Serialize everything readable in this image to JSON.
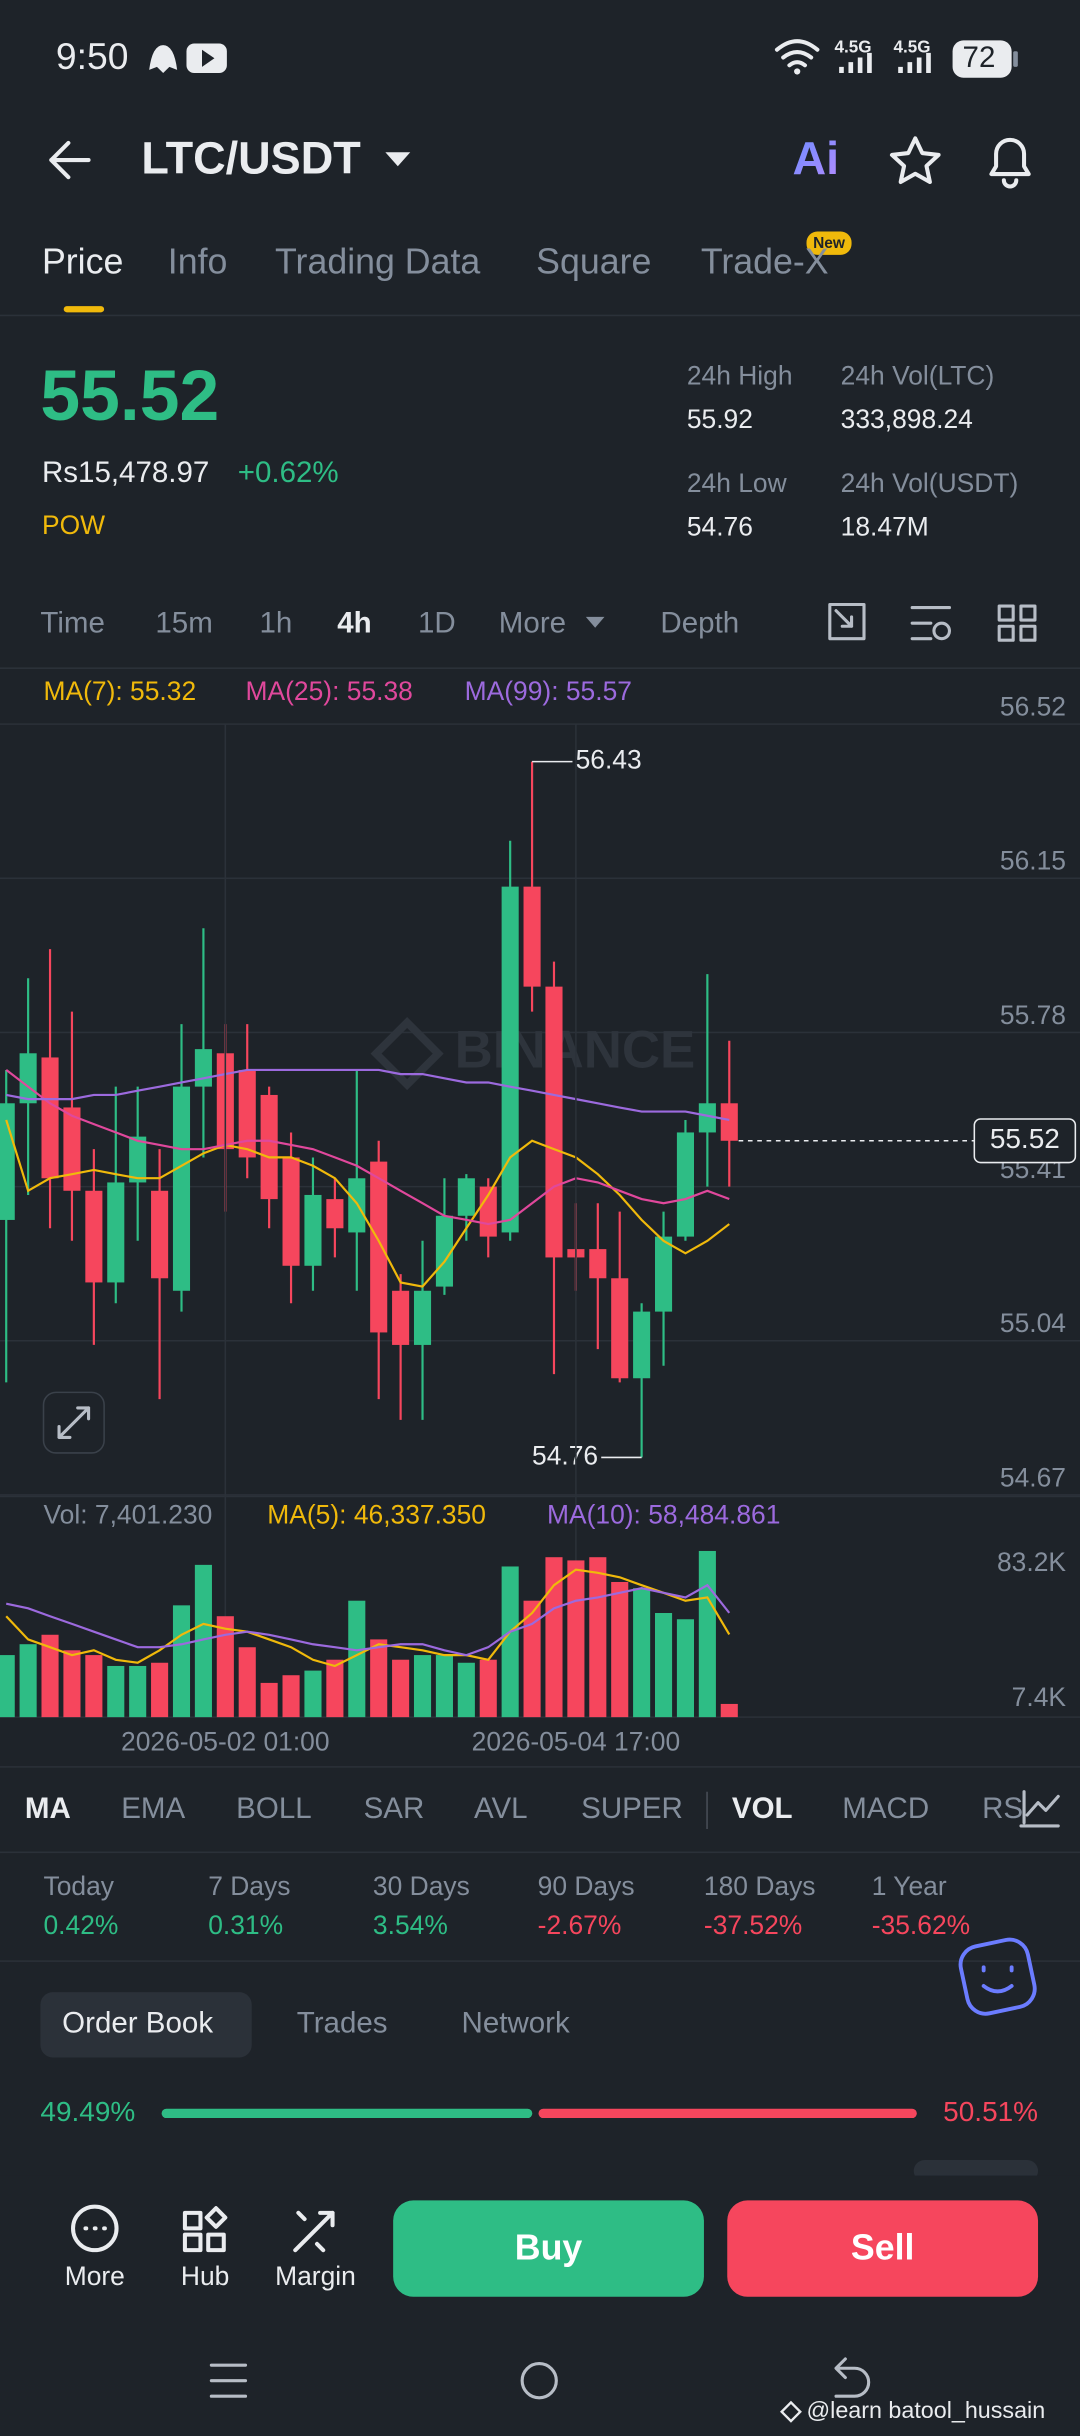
{
  "status_bar": {
    "time": "9:50",
    "network_1": "4.5G",
    "network_2": "4.5G",
    "battery": "72"
  },
  "header": {
    "pair": "LTC/USDT",
    "ai": "Ai"
  },
  "tabs": [
    "Price",
    "Info",
    "Trading Data",
    "Square",
    "Trade-X"
  ],
  "tab_badge": "New",
  "ticker": {
    "price": "55.52",
    "local_price": "Rs15,478.97",
    "change": "+0.62%",
    "tag": "POW",
    "stats": [
      {
        "label": "24h High",
        "value": "55.92"
      },
      {
        "label": "24h Vol(LTC)",
        "value": "333,898.24"
      },
      {
        "label": "24h Low",
        "value": "54.76"
      },
      {
        "label": "24h Vol(USDT)",
        "value": "18.47M"
      }
    ]
  },
  "intervals": [
    "Time",
    "15m",
    "1h",
    "4h",
    "1D",
    "More",
    "Depth"
  ],
  "chart_data": [
    {
      "type": "candlestick",
      "watermark": "BINANCE",
      "open": [
        55.33,
        55.61,
        55.72,
        55.6,
        55.4,
        55.18,
        55.42,
        55.4,
        55.16,
        55.65,
        55.73,
        55.69,
        55.63,
        55.48,
        55.22,
        55.38,
        55.3,
        55.47,
        55.16,
        55.03,
        55.17,
        55.34,
        55.41,
        55.3,
        56.13,
        55.89,
        55.26,
        55.26,
        55.19,
        54.95,
        55.11,
        55.29,
        55.54,
        55.61
      ],
      "high": [
        55.69,
        55.91,
        55.98,
        55.83,
        55.5,
        55.65,
        55.65,
        55.5,
        55.8,
        56.03,
        55.8,
        55.8,
        55.65,
        55.54,
        55.48,
        55.43,
        55.69,
        55.52,
        55.2,
        55.28,
        55.43,
        55.44,
        55.43,
        56.24,
        56.43,
        55.95,
        55.37,
        55.37,
        55.35,
        55.13,
        55.35,
        55.57,
        55.92,
        55.76
      ],
      "low": [
        54.94,
        55.39,
        55.31,
        55.28,
        55.03,
        55.13,
        55.28,
        54.9,
        55.11,
        55.48,
        55.35,
        55.43,
        55.31,
        55.13,
        55.16,
        55.24,
        55.16,
        54.9,
        54.85,
        54.85,
        55.15,
        55.28,
        55.24,
        55.28,
        55.83,
        54.96,
        55.16,
        55.02,
        54.94,
        54.76,
        54.98,
        55.28,
        55.41,
        55.41
      ],
      "close": [
        55.61,
        55.73,
        55.43,
        55.4,
        55.18,
        55.42,
        55.53,
        55.19,
        55.65,
        55.74,
        55.5,
        55.48,
        55.38,
        55.22,
        55.39,
        55.31,
        55.43,
        55.06,
        55.03,
        55.16,
        55.34,
        55.43,
        55.29,
        56.13,
        55.89,
        55.24,
        55.24,
        55.19,
        54.95,
        55.11,
        55.29,
        55.54,
        55.61,
        55.52
      ],
      "up_color": "#2ebd85",
      "down_color": "#f6465d",
      "series": [
        {
          "name": "MA(7): 55.32",
          "color": "#f0b90b",
          "values": [
            55.57,
            55.4,
            55.43,
            55.44,
            55.45,
            55.44,
            55.43,
            55.43,
            55.46,
            55.49,
            55.51,
            55.5,
            55.48,
            55.48,
            55.46,
            55.43,
            55.37,
            55.28,
            55.18,
            55.17,
            55.23,
            55.31,
            55.39,
            55.48,
            55.52,
            55.5,
            55.48,
            55.44,
            55.39,
            55.33,
            55.28,
            55.25,
            55.28,
            55.32
          ]
        },
        {
          "name": "MA(25): 55.38",
          "color": "#e0489c",
          "values": [
            55.69,
            55.65,
            55.61,
            55.58,
            55.56,
            55.54,
            55.52,
            55.51,
            55.5,
            55.5,
            55.51,
            55.52,
            55.52,
            55.51,
            55.5,
            55.48,
            55.46,
            55.43,
            55.4,
            55.37,
            55.34,
            55.33,
            55.32,
            55.33,
            55.37,
            55.41,
            55.43,
            55.42,
            55.4,
            55.38,
            55.37,
            55.38,
            55.4,
            55.38
          ]
        },
        {
          "name": "MA(99): 55.57",
          "color": "#9c6ade",
          "values": [
            55.63,
            55.62,
            55.62,
            55.62,
            55.63,
            55.63,
            55.64,
            55.65,
            55.66,
            55.67,
            55.68,
            55.69,
            55.69,
            55.69,
            55.69,
            55.69,
            55.69,
            55.69,
            55.68,
            55.68,
            55.67,
            55.66,
            55.66,
            55.65,
            55.64,
            55.63,
            55.62,
            55.61,
            55.6,
            55.59,
            55.59,
            55.59,
            55.58,
            55.57
          ]
        }
      ],
      "ylim": [
        54.67,
        56.52
      ],
      "yticks": [
        56.52,
        56.15,
        55.78,
        55.41,
        55.04,
        54.67
      ],
      "grid": true,
      "annotations": [
        {
          "index": 24,
          "value": 56.43
        },
        {
          "index": 29,
          "value": 54.76
        }
      ],
      "last_price": 55.52
    },
    {
      "type": "bar",
      "categories": [
        null,
        null,
        null,
        null,
        null,
        null,
        null,
        null,
        null,
        null,
        "2026-05-02 01:00",
        null,
        null,
        null,
        null,
        null,
        null,
        null,
        null,
        null,
        null,
        null,
        null,
        null,
        null,
        null,
        "2026-05-04 17:00",
        null,
        null,
        null,
        null,
        null,
        null,
        null
      ],
      "series": [
        {
          "name": "Vol: 7,401.230",
          "values": [
            34800,
            40900,
            46200,
            37500,
            34800,
            28700,
            28700,
            30500,
            62700,
            85400,
            56600,
            39200,
            19200,
            23500,
            26100,
            32200,
            65300,
            43600,
            32200,
            34800,
            34800,
            30500,
            32200,
            84500,
            65300,
            89700,
            87900,
            89700,
            75800,
            72300,
            58400,
            54900,
            93200,
            7401.23
          ],
          "colors": [
            "#2ebd85",
            "#2ebd85",
            "#f6465d",
            "#f6465d",
            "#f6465d",
            "#2ebd85",
            "#2ebd85",
            "#f6465d",
            "#2ebd85",
            "#2ebd85",
            "#f6465d",
            "#f6465d",
            "#f6465d",
            "#f6465d",
            "#2ebd85",
            "#f6465d",
            "#2ebd85",
            "#f6465d",
            "#f6465d",
            "#2ebd85",
            "#2ebd85",
            "#2ebd85",
            "#f6465d",
            "#2ebd85",
            "#f6465d",
            "#f6465d",
            "#f6465d",
            "#f6465d",
            "#f6465d",
            "#2ebd85",
            "#2ebd85",
            "#2ebd85",
            "#2ebd85",
            "#f6465d"
          ]
        },
        {
          "name": "MA(5): 46,337.350",
          "type": "line",
          "color": "#f0b90b",
          "values": [
            56600,
            43600,
            39200,
            34800,
            37500,
            32200,
            30500,
            37500,
            46200,
            52300,
            49600,
            47900,
            43600,
            39200,
            32200,
            28700,
            34800,
            40900,
            39200,
            37500,
            34800,
            34800,
            32200,
            47900,
            58400,
            74000,
            82700,
            81000,
            78400,
            74000,
            69700,
            65300,
            67100,
            46337.35
          ]
        },
        {
          "name": "MA(10): 58,484.861",
          "type": "line",
          "color": "#9c6ade",
          "values": [
            63600,
            61000,
            56600,
            52300,
            47900,
            43600,
            39200,
            39200,
            40900,
            43600,
            46200,
            47900,
            46200,
            43600,
            40900,
            39200,
            37500,
            39200,
            40900,
            40900,
            37500,
            34800,
            39200,
            47900,
            52300,
            61000,
            65300,
            67100,
            69700,
            72300,
            69700,
            67100,
            74000,
            58484.861
          ]
        }
      ],
      "ylim": [
        0,
        95000
      ],
      "yticks": [
        {
          "value": 83200,
          "label": "83.2K"
        },
        {
          "value": 7400,
          "label": "7.4K"
        }
      ]
    }
  ],
  "indicators": [
    "MA",
    "EMA",
    "BOLL",
    "SAR",
    "AVL",
    "SUPER",
    "VOL",
    "MACD",
    "RS"
  ],
  "performance": [
    {
      "label": "Today",
      "value": "0.42%"
    },
    {
      "label": "7 Days",
      "value": "0.31%"
    },
    {
      "label": "30 Days",
      "value": "3.54%"
    },
    {
      "label": "90 Days",
      "value": "-2.67%"
    },
    {
      "label": "180 Days",
      "value": "-37.52%"
    },
    {
      "label": "1 Year",
      "value": "-35.62%"
    }
  ],
  "order_book": {
    "tabs": [
      "Order Book",
      "Trades",
      "Network"
    ],
    "ratio": {
      "values": [
        49.49,
        50.51
      ],
      "value_labels": [
        "49.49%",
        "50.51%"
      ],
      "colors": [
        "#2ebd85",
        "#f6465d"
      ]
    }
  },
  "actions": {
    "tools": [
      "More",
      "Hub",
      "Margin"
    ],
    "buy": "Buy",
    "sell": "Sell"
  },
  "credit": "@learn batool_hussain"
}
